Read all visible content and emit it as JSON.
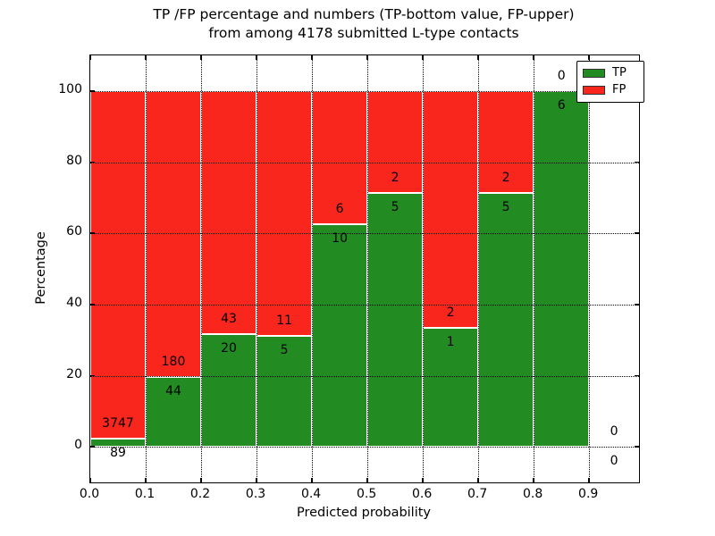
{
  "figure": {
    "title_line1": "TP /FP percentage and numbers (TP-bottom value, FP-upper)",
    "title_line2": "from among 4178 submitted L-type contacts",
    "total_contacts": 4178
  },
  "chart_data": {
    "type": "bar",
    "stacked": true,
    "title": "TP /FP percentage and numbers (TP-bottom value, FP-upper) from among 4178 submitted L-type contacts",
    "xlabel": "Predicted probability",
    "ylabel": "Percentage",
    "xlim": [
      0.0,
      0.99
    ],
    "ylim": [
      -10,
      110
    ],
    "x_ticks": [
      {
        "v": 0.0,
        "label": "0.0"
      },
      {
        "v": 0.1,
        "label": "0.1"
      },
      {
        "v": 0.2,
        "label": "0.2"
      },
      {
        "v": 0.3,
        "label": "0.3"
      },
      {
        "v": 0.4,
        "label": "0.4"
      },
      {
        "v": 0.5,
        "label": "0.5"
      },
      {
        "v": 0.6,
        "label": "0.6"
      },
      {
        "v": 0.7,
        "label": "0.7"
      },
      {
        "v": 0.8,
        "label": "0.8"
      },
      {
        "v": 0.9,
        "label": "0.9"
      }
    ],
    "y_ticks": [
      {
        "v": 0,
        "label": "0"
      },
      {
        "v": 20,
        "label": "20"
      },
      {
        "v": 40,
        "label": "40"
      },
      {
        "v": 60,
        "label": "60"
      },
      {
        "v": 80,
        "label": "80"
      },
      {
        "v": 100,
        "label": "100"
      }
    ],
    "grid": {
      "style": "dotted",
      "on": true
    },
    "legend": {
      "position": "upper-right",
      "entries": [
        {
          "label": "TP",
          "color": "#228b22"
        },
        {
          "label": "FP",
          "color": "#f8261d"
        }
      ]
    },
    "bins": [
      {
        "range": [
          0.0,
          0.1
        ],
        "tp_count": 89,
        "fp_count": 3747,
        "tp_percent": 2.3
      },
      {
        "range": [
          0.1,
          0.2
        ],
        "tp_count": 44,
        "fp_count": 180,
        "tp_percent": 19.6
      },
      {
        "range": [
          0.2,
          0.3
        ],
        "tp_count": 20,
        "fp_count": 43,
        "tp_percent": 31.7
      },
      {
        "range": [
          0.3,
          0.4
        ],
        "tp_count": 5,
        "fp_count": 11,
        "tp_percent": 31.3
      },
      {
        "range": [
          0.4,
          0.5
        ],
        "tp_count": 10,
        "fp_count": 6,
        "tp_percent": 62.5
      },
      {
        "range": [
          0.5,
          0.6
        ],
        "tp_count": 5,
        "fp_count": 2,
        "tp_percent": 71.4
      },
      {
        "range": [
          0.6,
          0.7
        ],
        "tp_count": 1,
        "fp_count": 2,
        "tp_percent": 33.3
      },
      {
        "range": [
          0.7,
          0.8
        ],
        "tp_count": 5,
        "fp_count": 2,
        "tp_percent": 71.4
      },
      {
        "range": [
          0.8,
          0.9
        ],
        "tp_count": 6,
        "fp_count": 0,
        "tp_percent": 100.0
      },
      {
        "range": [
          0.9,
          1.0
        ],
        "tp_count": 0,
        "fp_count": 0,
        "tp_percent": null
      }
    ],
    "colors": {
      "tp": "#228b22",
      "fp": "#f8261d",
      "bar_edge": "#ffffff",
      "grid": "#000000",
      "text": "#000000",
      "background": "#ffffff"
    }
  }
}
